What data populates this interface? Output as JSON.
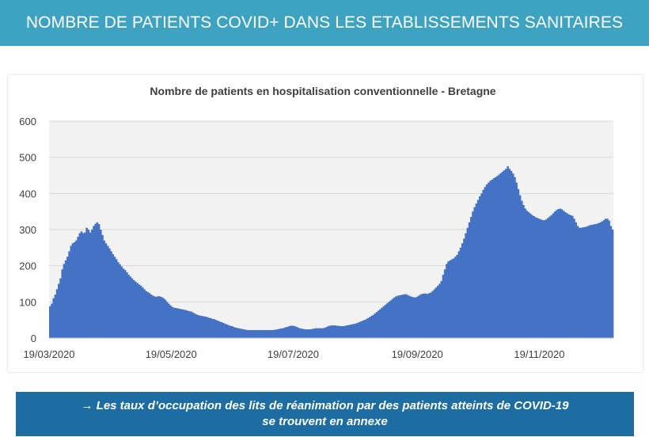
{
  "header": {
    "title": "NOMBRE DE PATIENTS COVID+ DANS LES ETABLISSEMENTS SANITAIRES"
  },
  "chart_data": {
    "type": "bar",
    "title": "Nombre de patients en hospitalisation conventionnelle - Bretagne",
    "xlabel": "",
    "ylabel": "",
    "ylim": [
      0,
      600
    ],
    "yticks": [
      "0",
      "100",
      "200",
      "300",
      "400",
      "500",
      "600"
    ],
    "xticks": [
      "19/03/2020",
      "19/05/2020",
      "19/07/2020",
      "19/09/2020",
      "19/11/2020"
    ],
    "start_date": "19/03/2020",
    "end_date": "26/12/2020",
    "grid": true,
    "bar_color": "#4472c4",
    "plot_background": "#f2f2f2",
    "series": [
      {
        "values": [
          88,
          95,
          110,
          120,
          135,
          150,
          165,
          190,
          205,
          215,
          225,
          240,
          255,
          262,
          265,
          270,
          280,
          290,
          295,
          290,
          292,
          305,
          300,
          292,
          300,
          310,
          316,
          320,
          315,
          300,
          285,
          270,
          262,
          255,
          248,
          240,
          232,
          225,
          218,
          210,
          204,
          198,
          192,
          188,
          182,
          175,
          170,
          165,
          160,
          156,
          152,
          148,
          145,
          140,
          135,
          130,
          127,
          124,
          120,
          117,
          115,
          114,
          116,
          115,
          113,
          110,
          106,
          100,
          95,
          90,
          86,
          84,
          83,
          82,
          81,
          80,
          79,
          78,
          77,
          75,
          74,
          73,
          70,
          67,
          65,
          63,
          62,
          61,
          60,
          59,
          58,
          56,
          55,
          53,
          52,
          50,
          48,
          46,
          44,
          42,
          40,
          38,
          36,
          34,
          33,
          31,
          29,
          28,
          27,
          26,
          25,
          24,
          23,
          22,
          22,
          22,
          22,
          22,
          22,
          22,
          22,
          22,
          22,
          22,
          22,
          22,
          22,
          22,
          22,
          23,
          24,
          25,
          26,
          27,
          28,
          30,
          31,
          33,
          34,
          34,
          33,
          31,
          29,
          27,
          26,
          25,
          24,
          24,
          24,
          24,
          25,
          26,
          27,
          27,
          27,
          27,
          27,
          28,
          30,
          32,
          34,
          35,
          35,
          35,
          34,
          34,
          33,
          33,
          33,
          34,
          35,
          36,
          37,
          38,
          39,
          40,
          42,
          44,
          46,
          48,
          50,
          52,
          55,
          58,
          61,
          64,
          68,
          72,
          76,
          80,
          84,
          88,
          92,
          96,
          100,
          104,
          108,
          112,
          115,
          117,
          118,
          119,
          120,
          121,
          121,
          118,
          116,
          114,
          113,
          112,
          114,
          117,
          120,
          122,
          123,
          123,
          122,
          124,
          126,
          130,
          135,
          140,
          145,
          150,
          158,
          175,
          190,
          205,
          212,
          215,
          218,
          220,
          225,
          230,
          240,
          250,
          262,
          275,
          290,
          305,
          320,
          335,
          350,
          362,
          372,
          382,
          392,
          400,
          410,
          418,
          425,
          430,
          435,
          438,
          442,
          445,
          448,
          452,
          456,
          460,
          464,
          468,
          475,
          468,
          462,
          455,
          445,
          430,
          412,
          395,
          380,
          368,
          358,
          352,
          348,
          344,
          340,
          337,
          334,
          332,
          330,
          328,
          326,
          326,
          328,
          332,
          336,
          340,
          345,
          350,
          354,
          357,
          358,
          356,
          352,
          348,
          345,
          342,
          340,
          338,
          330,
          320,
          310,
          305,
          305,
          306,
          307,
          308,
          310,
          312,
          313,
          314,
          315,
          316,
          318,
          320,
          323,
          326,
          330,
          330,
          325,
          310,
          300
        ]
      }
    ]
  },
  "note": {
    "line1": "→ Les taux d’occupation des lits de réanimation par des patients atteints de COVID-19",
    "line2": "se trouvent en annexe"
  }
}
